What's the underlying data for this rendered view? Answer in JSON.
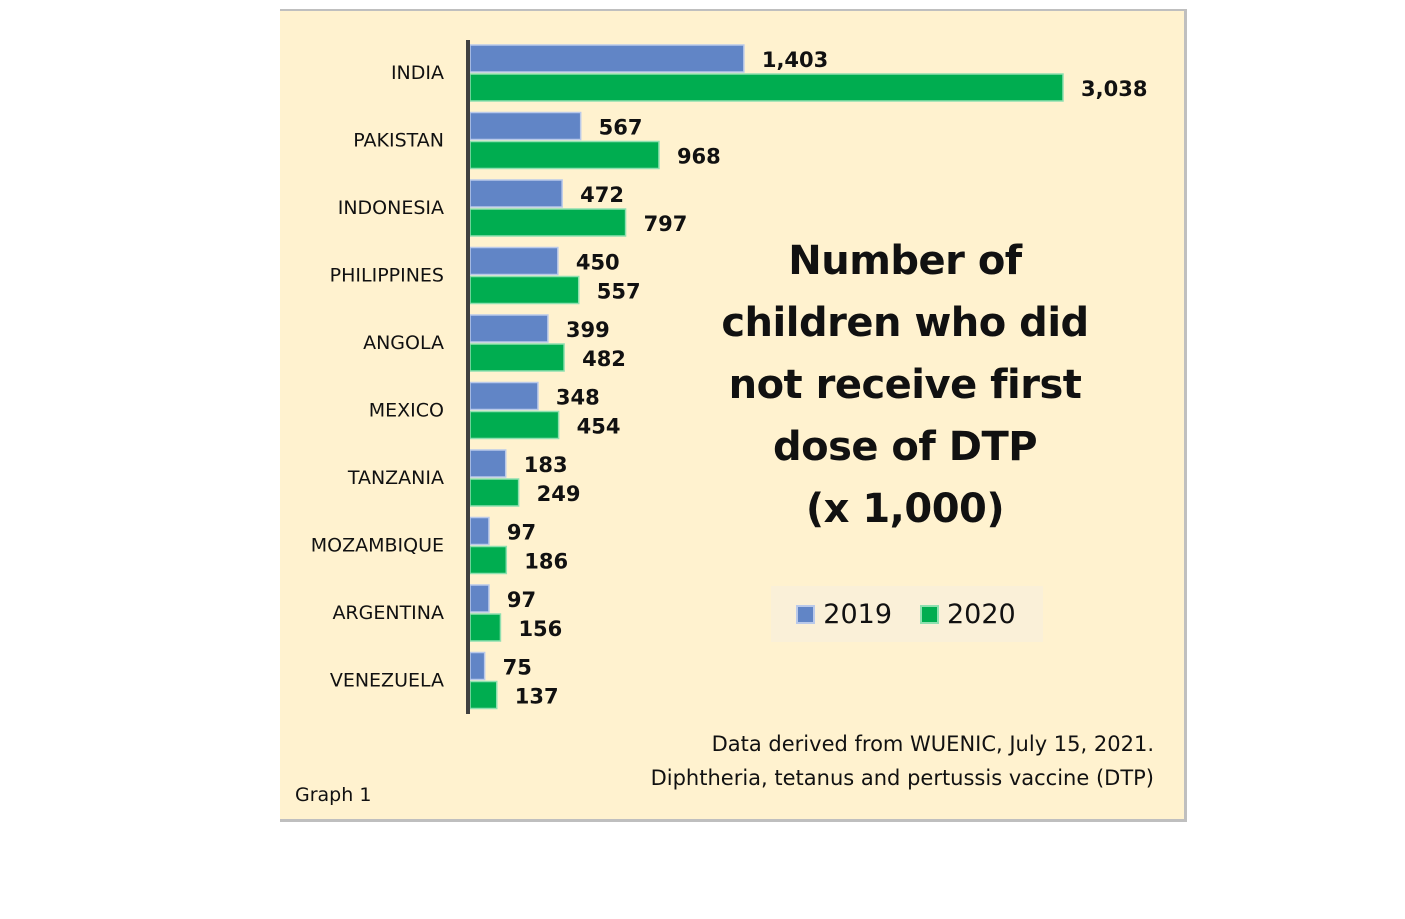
{
  "chart_data": {
    "type": "bar",
    "orientation": "horizontal",
    "title": "Number of children who did not receive first dose of DTP (x 1,000)",
    "title_lines": [
      "Number of",
      "children who did",
      "not receive first",
      "dose of DTP",
      "(x 1,000)"
    ],
    "categories": [
      "INDIA",
      "PAKISTAN",
      "INDONESIA",
      "PHILIPPINES",
      "ANGOLA",
      "MEXICO",
      "TANZANIA",
      "MOZAMBIQUE",
      "ARGENTINA",
      "VENEZUELA"
    ],
    "series": [
      {
        "name": "2019",
        "color": "#6185c6",
        "values": [
          1403,
          567,
          472,
          450,
          399,
          348,
          183,
          97,
          97,
          75
        ],
        "labels": [
          "1,403",
          "567",
          "472",
          "450",
          "399",
          "348",
          "183",
          "97",
          "97",
          "75"
        ]
      },
      {
        "name": "2020",
        "color": "#00ad50",
        "values": [
          3038,
          968,
          797,
          557,
          482,
          454,
          249,
          186,
          156,
          137
        ],
        "labels": [
          "3,038",
          "968",
          "797",
          "557",
          "482",
          "454",
          "249",
          "186",
          "156",
          "137"
        ]
      }
    ],
    "xlabel": "",
    "ylabel": "",
    "xlim": [
      0,
      3038
    ],
    "grid": false,
    "legend_position": "right-middle",
    "data_labels": true,
    "units": "x 1,000 children"
  },
  "legend": {
    "items": [
      {
        "label": "2019",
        "color": "#6185c6"
      },
      {
        "label": "2020",
        "color": "#00ad50"
      }
    ]
  },
  "source_note": {
    "line1": "Data derived from WUENIC, July 15, 2021.",
    "line2": "Diphtheria, tetanus and pertussis vaccine (DTP)"
  },
  "graph_label": "Graph 1",
  "colors": {
    "background": "#fff2cf",
    "axis": "#404040",
    "border": "#bfbfbf"
  }
}
